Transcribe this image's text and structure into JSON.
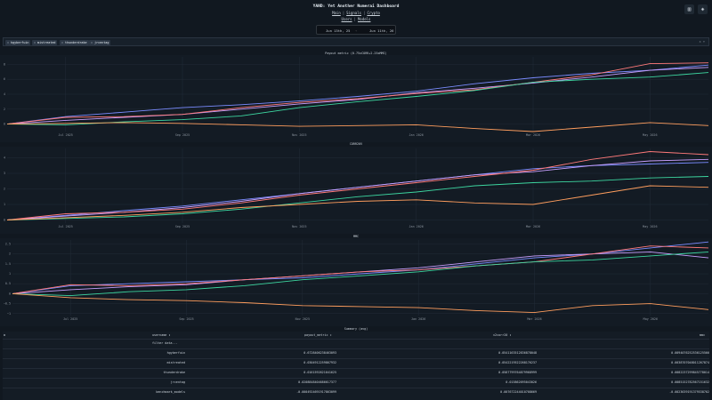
{
  "header": {
    "title": "YAND: Yet Another Numerai Dashboard",
    "nav1": [
      "Main",
      "Signals",
      "Crypto"
    ],
    "nav2": [
      "Users",
      "Models"
    ],
    "icons": [
      "bar-chart-icon",
      "settings-icon"
    ]
  },
  "date_range": {
    "start": "Jun 13th, 25",
    "arrow": "→",
    "end": "Jun 11th, 26"
  },
  "filters": {
    "chips": [
      "hgyberfuin",
      "mistreated",
      "thunderdrake",
      "jrcentag"
    ],
    "controls": "× ▾"
  },
  "charts": {
    "payout": {
      "title": "Payout metric (0.75xCORR+2.25xMMC)"
    },
    "corr": {
      "title": "CORR20V"
    },
    "mmc": {
      "title": "MMC"
    }
  },
  "chart_data": [
    {
      "type": "line",
      "title": "Payout metric (0.75xCORR+2.25xMMC)",
      "x": [
        "Jun 2025",
        "Jul 2025",
        "Aug 2025",
        "Sep 2025",
        "Oct 2025",
        "Nov 2025",
        "Dec 2025",
        "Jan 2026",
        "Feb 2026",
        "Mar 2026",
        "Apr 2026",
        "May 2026",
        "Jun 2026"
      ],
      "x_ticks": [
        "Jul 2025",
        "Sep 2025",
        "Nov 2025",
        "Jan 2026",
        "Mar 2026",
        "May 2026"
      ],
      "y_ticks": [
        0,
        2,
        4,
        6,
        8
      ],
      "ylim": [
        -1,
        9
      ],
      "series": [
        {
          "color": "#7b8cff",
          "values": [
            0,
            1.0,
            1.6,
            2.2,
            2.6,
            3.1,
            3.7,
            4.4,
            5.4,
            6.2,
            6.8,
            7.2,
            7.9
          ]
        },
        {
          "color": "#c9a0ff",
          "values": [
            0,
            0.5,
            0.9,
            1.3,
            2.0,
            2.7,
            3.3,
            4.2,
            4.8,
            5.5,
            6.3,
            7.2,
            7.6
          ]
        },
        {
          "color": "#ff7a7a",
          "values": [
            0,
            0.9,
            1.0,
            1.3,
            2.2,
            2.9,
            3.4,
            4.1,
            4.6,
            5.6,
            6.6,
            8.1,
            8.2
          ]
        },
        {
          "color": "#3dd6a0",
          "values": [
            0,
            -0.1,
            0.3,
            0.6,
            1.1,
            2.2,
            3.0,
            3.7,
            4.5,
            5.6,
            6.0,
            6.3,
            6.9
          ]
        },
        {
          "color": "#ff9e5e",
          "values": [
            0,
            0.1,
            0.2,
            0.1,
            -0.1,
            -0.3,
            -0.2,
            -0.1,
            -0.6,
            -1.0,
            -0.4,
            0.2,
            -0.2
          ]
        }
      ]
    },
    {
      "type": "line",
      "title": "CORR20V",
      "x": [
        "Jun 2025",
        "Jul 2025",
        "Aug 2025",
        "Sep 2025",
        "Oct 2025",
        "Nov 2025",
        "Dec 2025",
        "Jan 2026",
        "Feb 2026",
        "Mar 2026",
        "Apr 2026",
        "May 2026",
        "Jun 2026"
      ],
      "x_ticks": [
        "Jul 2025",
        "Sep 2025",
        "Nov 2025",
        "Jan 2026",
        "Mar 2026",
        "May 2026"
      ],
      "y_ticks": [
        0,
        1,
        2,
        3,
        4
      ],
      "ylim": [
        -0.2,
        4.6
      ],
      "series": [
        {
          "color": "#7b8cff",
          "values": [
            0,
            0.3,
            0.6,
            0.9,
            1.3,
            1.7,
            2.1,
            2.5,
            2.9,
            3.3,
            3.5,
            3.6,
            3.7
          ]
        },
        {
          "color": "#c9a0ff",
          "values": [
            0,
            0.25,
            0.5,
            0.8,
            1.2,
            1.7,
            2.1,
            2.5,
            2.9,
            3.1,
            3.5,
            3.8,
            3.9
          ]
        },
        {
          "color": "#ff7a7a",
          "values": [
            0,
            0.4,
            0.5,
            0.7,
            1.1,
            1.6,
            2.0,
            2.4,
            2.8,
            3.2,
            3.9,
            4.4,
            4.2
          ]
        },
        {
          "color": "#3dd6a0",
          "values": [
            0,
            0.1,
            0.2,
            0.4,
            0.7,
            1.1,
            1.5,
            1.8,
            2.2,
            2.4,
            2.5,
            2.7,
            2.8
          ]
        },
        {
          "color": "#ff9e5e",
          "values": [
            0,
            0.15,
            0.3,
            0.5,
            0.8,
            1.0,
            1.2,
            1.3,
            1.1,
            1.0,
            1.6,
            2.2,
            2.1
          ]
        }
      ]
    },
    {
      "type": "line",
      "title": "MMC",
      "x": [
        "Jun 2025",
        "Jul 2025",
        "Aug 2025",
        "Sep 2025",
        "Oct 2025",
        "Nov 2025",
        "Dec 2025",
        "Jan 2026",
        "Feb 2026",
        "Mar 2026",
        "Apr 2026",
        "May 2026",
        "Jun 2026"
      ],
      "x_ticks": [
        "Jul 2025",
        "Sep 2025",
        "Nov 2025",
        "Jan 2026",
        "Mar 2026",
        "May 2026"
      ],
      "y_ticks": [
        -1,
        -0.5,
        0,
        0.5,
        1,
        1.5,
        2,
        2.5
      ],
      "y_tick_labels": [
        "−1",
        "−0.5",
        "0",
        "0.5",
        "1",
        "1.5",
        "2",
        "2.5"
      ],
      "ylim": [
        -1.1,
        2.7
      ],
      "series": [
        {
          "color": "#7b8cff",
          "values": [
            0,
            0.4,
            0.5,
            0.6,
            0.7,
            0.8,
            1.0,
            1.2,
            1.5,
            1.8,
            2.0,
            2.3,
            2.6
          ]
        },
        {
          "color": "#c9a0ff",
          "values": [
            0,
            0.2,
            0.35,
            0.45,
            0.7,
            0.9,
            1.1,
            1.3,
            1.6,
            1.9,
            2.0,
            2.1,
            1.8
          ]
        },
        {
          "color": "#ff7a7a",
          "values": [
            0,
            0.45,
            0.4,
            0.5,
            0.7,
            0.9,
            1.1,
            1.2,
            1.4,
            1.6,
            2.0,
            2.4,
            2.3
          ]
        },
        {
          "color": "#3dd6a0",
          "values": [
            0,
            -0.1,
            0.1,
            0.2,
            0.4,
            0.7,
            0.9,
            1.1,
            1.4,
            1.6,
            1.7,
            1.9,
            2.1
          ]
        },
        {
          "color": "#ff9e5e",
          "values": [
            0,
            -0.2,
            -0.3,
            -0.35,
            -0.45,
            -0.6,
            -0.65,
            -0.7,
            -0.85,
            -0.95,
            -0.6,
            -0.5,
            -0.8
          ]
        }
      ]
    }
  ],
  "table": {
    "title": "Summary (avg)",
    "columns": [
      "username ↕",
      "payout_metric ↕",
      "v2corr20 ↕",
      "mmc"
    ],
    "filter_placeholder": "filter data...",
    "rows": [
      [
        "hgyberfuin",
        "0.6728406238463093",
        "0.0541163512836878048",
        "0.0094076252536125566"
      ],
      [
        "mistreated",
        "0.0304912259867932",
        "0.0542219522268176237",
        "0.0038707048011267874"
      ],
      [
        "thunderdrake",
        "0.0161592621041625",
        "0.0587799764879968999",
        "0.0082237299845778014"
      ],
      [
        "jrcentag",
        "0.0208848404686617377",
        "0.015862095043026",
        "0.0085152782567151632"
      ],
      [
        "benchmark_models",
        "-0.0004924691917863099",
        "0.007672244010708669",
        "-0.0023639191379538702"
      ]
    ]
  }
}
